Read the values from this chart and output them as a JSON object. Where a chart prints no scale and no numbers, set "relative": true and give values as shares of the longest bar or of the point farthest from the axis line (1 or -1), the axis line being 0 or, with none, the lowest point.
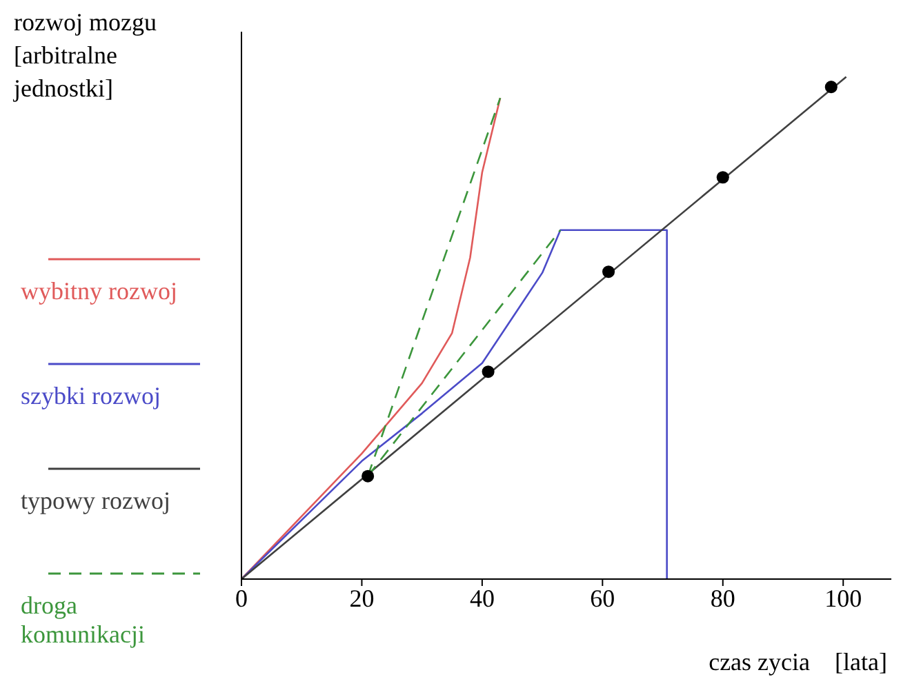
{
  "chart_data": {
    "type": "line",
    "relative": true,
    "ylabel": "rozwoj  mozgu [arbitralne jednostki]",
    "xlabel": "czas zycia    [lata]",
    "xlim": [
      0,
      108
    ],
    "xticks": [
      0,
      20,
      40,
      60,
      80,
      100
    ],
    "legend": "left",
    "grid": false,
    "series": [
      {
        "name": "wybitny rozwoj",
        "color": "#e05a5a",
        "x": [
          0,
          10,
          20,
          25,
          30,
          35,
          38,
          40,
          43
        ],
        "values": [
          0,
          0.125,
          0.25,
          0.32,
          0.39,
          0.49,
          0.64,
          0.81,
          0.958
        ]
      },
      {
        "name": "szybki rozwoj",
        "color": "#4b4bc8",
        "x": [
          0,
          20,
          30,
          40,
          45,
          50,
          53,
          70.7,
          70.7
        ],
        "values": [
          0,
          0.235,
          0.33,
          0.43,
          0.52,
          0.61,
          0.695,
          0.695,
          0
        ]
      },
      {
        "name": "typowy rozwoj",
        "color": "#404040",
        "x": [
          0,
          100.5
        ],
        "values": [
          0,
          1
        ]
      },
      {
        "name": "droga komunikacji",
        "color": "#3c963c",
        "line_style": "dashed",
        "x": [
          21,
          43
        ],
        "values": [
          0.205,
          0.958
        ]
      },
      {
        "color": "#3c963c",
        "line_style": "dashed",
        "x": [
          21,
          53
        ],
        "values": [
          0.205,
          0.695
        ]
      },
      {
        "type": "scatter",
        "marker": "circle",
        "color": "#000000",
        "x": [
          21,
          41,
          61,
          80,
          98
        ],
        "values": [
          0.205,
          0.413,
          0.612,
          0.8,
          0.98
        ]
      }
    ]
  }
}
